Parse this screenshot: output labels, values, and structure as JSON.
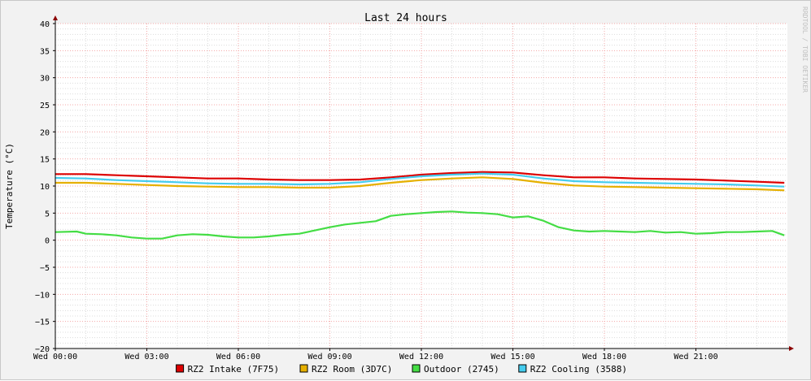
{
  "chart_data": {
    "type": "line",
    "title": "Last 24 hours",
    "ylabel": "Temperature (°C)",
    "xlabel": "",
    "watermark": "RRDTOOL / TOBI OETIKER",
    "ylim": [
      -20,
      40
    ],
    "yticks": [
      40,
      35,
      30,
      25,
      20,
      15,
      10,
      5,
      0,
      -5,
      -10,
      -15,
      -20
    ],
    "ytick_labels": [
      "40",
      "35",
      "30",
      "25",
      "20",
      "15",
      "10",
      "5",
      "0",
      "−5",
      "−10",
      "−15",
      "−20"
    ],
    "xlim_hours": [
      0,
      24
    ],
    "xticks_hours": [
      0,
      3,
      6,
      9,
      12,
      15,
      18,
      21
    ],
    "xtick_labels": [
      "Wed 00:00",
      "Wed 03:00",
      "Wed 06:00",
      "Wed 09:00",
      "Wed 12:00",
      "Wed 15:00",
      "Wed 18:00",
      "Wed 21:00"
    ],
    "grid": true,
    "legend_position": "bottom",
    "colors": {
      "background": "#f2f2f2",
      "canvas": "#ffffff",
      "major_grid": "#f4a8a8",
      "minor_grid": "#dcdcdc",
      "axis": "#8b0000"
    },
    "series": [
      {
        "name": "RZ2 Intake (7F75)",
        "color": "#dd0000",
        "x_hours": [
          0,
          1,
          2,
          3,
          4,
          5,
          6,
          7,
          8,
          9,
          10,
          11,
          12,
          13,
          14,
          15,
          16,
          17,
          18,
          19,
          20,
          21,
          22,
          23,
          23.9
        ],
        "values": [
          12.2,
          12.2,
          12.0,
          11.8,
          11.6,
          11.4,
          11.4,
          11.2,
          11.1,
          11.1,
          11.2,
          11.6,
          12.1,
          12.4,
          12.6,
          12.5,
          12.0,
          11.6,
          11.6,
          11.4,
          11.3,
          11.2,
          11.0,
          10.8,
          10.6
        ]
      },
      {
        "name": "RZ2 Room (3D7C)",
        "color": "#e6b000",
        "x_hours": [
          0,
          1,
          2,
          3,
          4,
          5,
          6,
          7,
          8,
          9,
          10,
          11,
          12,
          13,
          14,
          15,
          16,
          17,
          18,
          19,
          20,
          21,
          22,
          23,
          23.9
        ],
        "values": [
          10.6,
          10.6,
          10.4,
          10.2,
          10.0,
          9.9,
          9.8,
          9.8,
          9.7,
          9.7,
          10.0,
          10.6,
          11.1,
          11.4,
          11.6,
          11.3,
          10.6,
          10.1,
          9.9,
          9.8,
          9.7,
          9.6,
          9.5,
          9.4,
          9.2
        ]
      },
      {
        "name": "Outdoor (2745)",
        "color": "#44dd44",
        "x_hours": [
          0,
          0.7,
          1,
          1.5,
          2,
          2.5,
          3,
          3.5,
          4,
          4.5,
          5,
          5.5,
          6,
          6.5,
          7,
          7.5,
          8,
          8.5,
          9,
          9.5,
          10,
          10.5,
          11,
          11.5,
          12,
          12.5,
          13,
          13.5,
          14,
          14.5,
          15,
          15.5,
          16,
          16.5,
          17,
          17.5,
          18,
          18.5,
          19,
          19.5,
          20,
          20.5,
          21,
          21.5,
          22,
          22.5,
          23,
          23.5,
          23.9
        ],
        "values": [
          1.5,
          1.6,
          1.2,
          1.1,
          0.9,
          0.5,
          0.3,
          0.3,
          0.9,
          1.1,
          1.0,
          0.7,
          0.5,
          0.5,
          0.7,
          1.0,
          1.2,
          1.8,
          2.4,
          2.9,
          3.2,
          3.5,
          4.5,
          4.8,
          5.0,
          5.2,
          5.3,
          5.1,
          5.0,
          4.8,
          4.2,
          4.4,
          3.6,
          2.4,
          1.8,
          1.6,
          1.7,
          1.6,
          1.5,
          1.7,
          1.4,
          1.5,
          1.2,
          1.3,
          1.5,
          1.5,
          1.6,
          1.7,
          0.9
        ]
      },
      {
        "name": "RZ2 Cooling (3588)",
        "color": "#44ccee",
        "x_hours": [
          0,
          1,
          2,
          3,
          4,
          5,
          6,
          7,
          8,
          9,
          10,
          11,
          12,
          13,
          14,
          15,
          16,
          17,
          18,
          19,
          20,
          21,
          22,
          23,
          23.9
        ],
        "values": [
          11.5,
          11.4,
          11.1,
          10.9,
          10.7,
          10.5,
          10.4,
          10.4,
          10.3,
          10.4,
          10.7,
          11.3,
          11.8,
          12.1,
          12.3,
          12.1,
          11.4,
          10.9,
          10.7,
          10.6,
          10.5,
          10.4,
          10.3,
          10.1,
          9.9
        ]
      }
    ]
  }
}
